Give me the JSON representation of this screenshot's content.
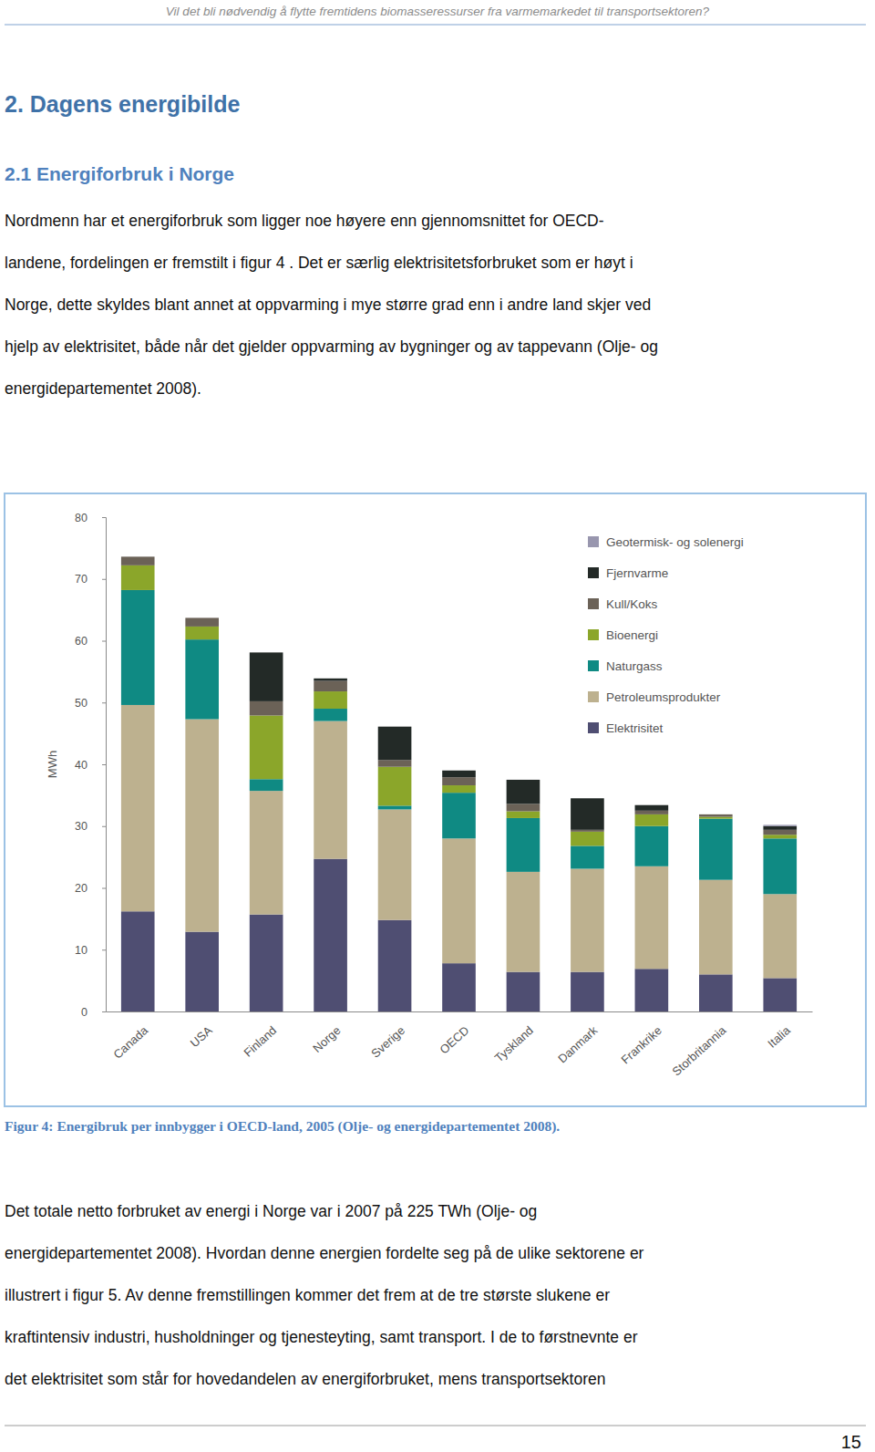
{
  "header": "Vil det bli nødvendig å flytte fremtidens biomasseressurser fra varmemarkedet til transportsektoren?",
  "heading": "2. Dagens energibilde",
  "subheading": "2.1 Energiforbruk i Norge",
  "paragraphs": [
    [
      "Nordmenn har et energiforbruk som ligger noe høyere enn gjennomsnittet for OECD-",
      "landene, fordelingen er fremstilt i figur 4 . Det er særlig elektrisitetsforbruket som er høyt i",
      "Norge, dette skyldes blant annet at oppvarming i mye større grad enn i andre land skjer ved",
      "hjelp av elektrisitet, både når det gjelder oppvarming av bygninger og av tappevann (Olje- og",
      "energidepartementet 2008)."
    ],
    [
      "Det totale netto forbruket av energi i Norge var i 2007 på 225 TWh (Olje- og",
      "energidepartementet 2008). Hvordan denne energien fordelte seg på de ulike sektorene er",
      "illustrert i figur 5. Av denne fremstillingen kommer det frem at de tre største slukene er",
      "kraftintensiv industri, husholdninger og tjenesteyting, samt transport. I de to førstnevnte er",
      "det elektrisitet som står for hovedandelen av energiforbruket, mens transportsektoren"
    ]
  ],
  "chart_data": {
    "type": "bar",
    "stacked": true,
    "y_label": "MWh",
    "legend": "top-right",
    "categories": [
      "Canada",
      "USA",
      "Finland",
      "Norge",
      "Sverige",
      "OECD",
      "Tyskland",
      "Danmark",
      "Frankrike",
      "Storbritannia",
      "Italia"
    ],
    "series": [
      {
        "name": "Elektrisitet",
        "color": "#4f4e72",
        "values": [
          16.2,
          12.9,
          15.7,
          24.7,
          14.8,
          7.8,
          6.4,
          6.4,
          6.9,
          6.0,
          5.4
        ]
      },
      {
        "name": "Petroleumsprodukter",
        "color": "#bdb18f",
        "values": [
          33.4,
          34.4,
          20.0,
          22.3,
          17.9,
          20.2,
          16.2,
          16.7,
          16.6,
          15.3,
          13.6
        ]
      },
      {
        "name": "Naturgass",
        "color": "#0f8a83",
        "values": [
          18.6,
          12.9,
          1.9,
          2.0,
          0.6,
          7.4,
          8.7,
          3.7,
          6.5,
          9.9,
          9.0
        ]
      },
      {
        "name": "Bioenergi",
        "color": "#8ba62a",
        "values": [
          4.0,
          2.1,
          10.3,
          2.8,
          6.3,
          1.2,
          1.1,
          2.3,
          1.9,
          0.3,
          0.6
        ]
      },
      {
        "name": "Kull/Koks",
        "color": "#6b6257",
        "values": [
          1.4,
          1.4,
          2.3,
          1.7,
          1.1,
          1.3,
          1.2,
          0.3,
          0.6,
          0.4,
          0.8
        ]
      },
      {
        "name": "Fjernvarme",
        "color": "#232a27",
        "values": [
          0,
          0,
          7.9,
          0.4,
          5.4,
          1.1,
          3.9,
          5.1,
          0.9,
          0,
          0.6
        ]
      },
      {
        "name": "Geotermisk- og solenergi",
        "color": "#9896ae",
        "values": [
          0,
          0,
          0,
          0,
          0,
          0,
          0,
          0,
          0,
          0,
          0.2
        ]
      }
    ],
    "ylim": [
      0,
      80
    ],
    "yticks": [
      0,
      10,
      20,
      30,
      40,
      50,
      60,
      70,
      80
    ]
  },
  "caption": "Figur 4: Energibruk per innbygger i OECD-land, 2005 (Olje- og energidepartementet 2008).",
  "page_number": "15"
}
